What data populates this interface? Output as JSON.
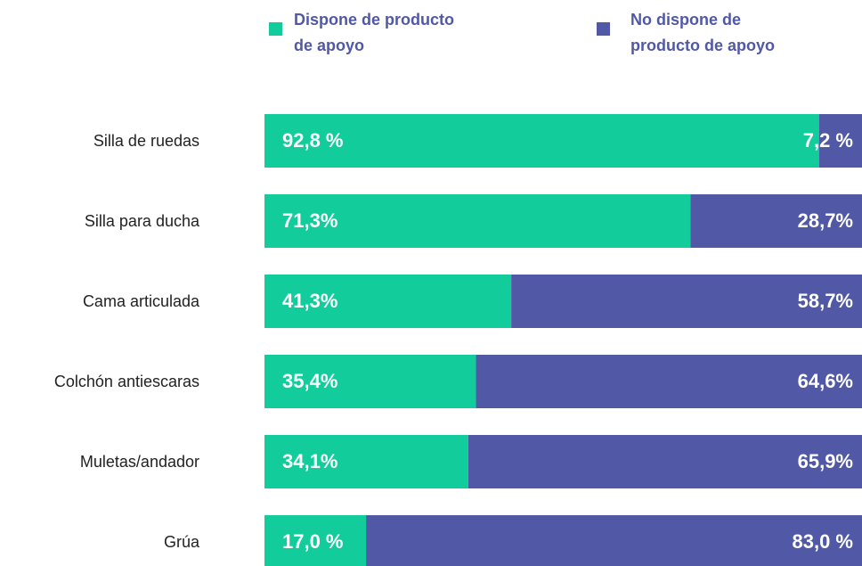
{
  "chart_data": {
    "type": "stacked_bar_horizontal",
    "categories": [
      "Silla de ruedas",
      "Silla para ducha",
      "Cama articulada",
      "Colchón antiescaras",
      "Muletas/andador",
      "Grúa"
    ],
    "series": [
      {
        "name": "Dispone de producto de apoyo",
        "color": "#12cc9c",
        "values": [
          92.8,
          71.3,
          41.3,
          35.4,
          34.1,
          17.0
        ],
        "value_labels": [
          "92,8 %",
          "71,3%",
          "41,3%",
          "35,4%",
          "34,1%",
          "17,0 %"
        ]
      },
      {
        "name": "No dispone de producto de apoyo",
        "color": "#5158a6",
        "values": [
          7.2,
          28.7,
          58.7,
          64.6,
          65.9,
          83.0
        ],
        "value_labels": [
          "7,2 %",
          "28,7%",
          "58,7%",
          "64,6%",
          "65,9%",
          "83,0 %"
        ]
      }
    ],
    "xlim": [
      0,
      100
    ]
  }
}
